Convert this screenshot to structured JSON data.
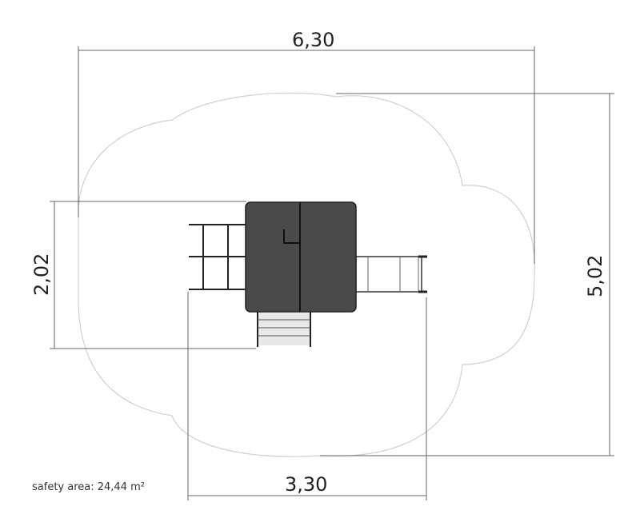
{
  "dimensions": {
    "overall_width": "6,30",
    "overall_depth": "5,02",
    "equipment_depth": "2,02",
    "equipment_width": "3,30"
  },
  "safety_area_label": "safety area: 24,44 m²",
  "colors": {
    "deck": "#4a4a4a",
    "outline": "#cfcfcf",
    "dimension_line": "#555555",
    "stairs": "#e8e8e8"
  }
}
